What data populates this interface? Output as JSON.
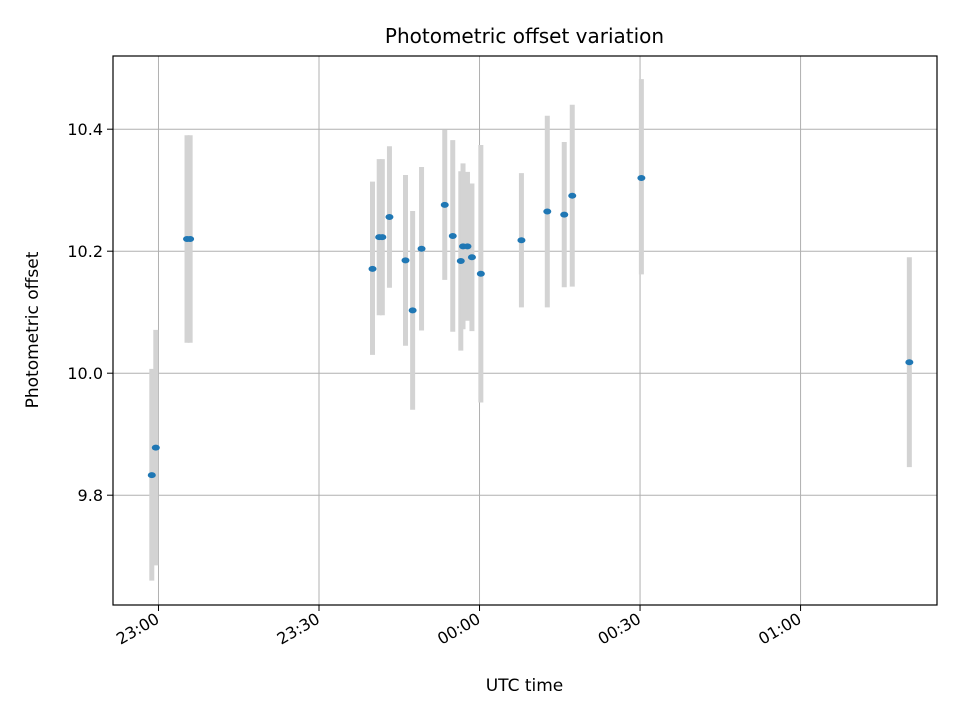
{
  "chart_data": {
    "type": "scatter",
    "title": "Photometric offset variation",
    "xlabel": "UTC time",
    "ylabel": "Photometric offset",
    "x_unit": "time",
    "xlim": [
      "22:51:30",
      "01:25:30"
    ],
    "ylim": [
      9.62,
      10.52
    ],
    "grid": true,
    "x_ticks": [
      "23:00",
      "23:30",
      "00:00",
      "00:30",
      "01:00"
    ],
    "y_ticks": [
      9.8,
      10.0,
      10.2,
      10.4
    ],
    "colors": {
      "point": "#1f77b4",
      "errorbar": "#d3d3d3",
      "grid": "#b0b0b0"
    },
    "points": [
      {
        "x": "22:58:45",
        "y": 9.833,
        "low": 9.66,
        "high": 10.007
      },
      {
        "x": "22:59:30",
        "y": 9.878,
        "low": 9.685,
        "high": 10.071
      },
      {
        "x": "23:05:20",
        "y": 10.22,
        "low": 10.05,
        "high": 10.39
      },
      {
        "x": "23:05:55",
        "y": 10.22,
        "low": 10.05,
        "high": 10.39
      },
      {
        "x": "23:40:00",
        "y": 10.171,
        "low": 10.03,
        "high": 10.314
      },
      {
        "x": "23:41:15",
        "y": 10.223,
        "low": 10.095,
        "high": 10.351
      },
      {
        "x": "23:41:50",
        "y": 10.223,
        "low": 10.095,
        "high": 10.351
      },
      {
        "x": "23:43:10",
        "y": 10.256,
        "low": 10.14,
        "high": 10.372
      },
      {
        "x": "23:46:10",
        "y": 10.185,
        "low": 10.045,
        "high": 10.325
      },
      {
        "x": "23:47:30",
        "y": 10.103,
        "low": 9.94,
        "high": 10.266
      },
      {
        "x": "23:49:10",
        "y": 10.204,
        "low": 10.07,
        "high": 10.338
      },
      {
        "x": "23:53:30",
        "y": 10.276,
        "low": 10.153,
        "high": 10.399
      },
      {
        "x": "23:55:00",
        "y": 10.225,
        "low": 10.068,
        "high": 10.382
      },
      {
        "x": "23:56:30",
        "y": 10.184,
        "low": 10.037,
        "high": 10.331
      },
      {
        "x": "23:56:55",
        "y": 10.208,
        "low": 10.072,
        "high": 10.344
      },
      {
        "x": "23:57:45",
        "y": 10.208,
        "low": 10.086,
        "high": 10.33
      },
      {
        "x": "23:58:35",
        "y": 10.19,
        "low": 10.069,
        "high": 10.311
      },
      {
        "x": "00:00:15",
        "y": 10.163,
        "low": 9.952,
        "high": 10.374
      },
      {
        "x": "00:07:50",
        "y": 10.218,
        "low": 10.108,
        "high": 10.328
      },
      {
        "x": "00:12:40",
        "y": 10.265,
        "low": 10.108,
        "high": 10.422
      },
      {
        "x": "00:15:50",
        "y": 10.26,
        "low": 10.141,
        "high": 10.379
      },
      {
        "x": "00:17:20",
        "y": 10.291,
        "low": 10.142,
        "high": 10.44
      },
      {
        "x": "00:30:15",
        "y": 10.32,
        "low": 10.162,
        "high": 10.482
      },
      {
        "x": "01:20:20",
        "y": 10.018,
        "low": 9.846,
        "high": 10.19
      }
    ]
  }
}
